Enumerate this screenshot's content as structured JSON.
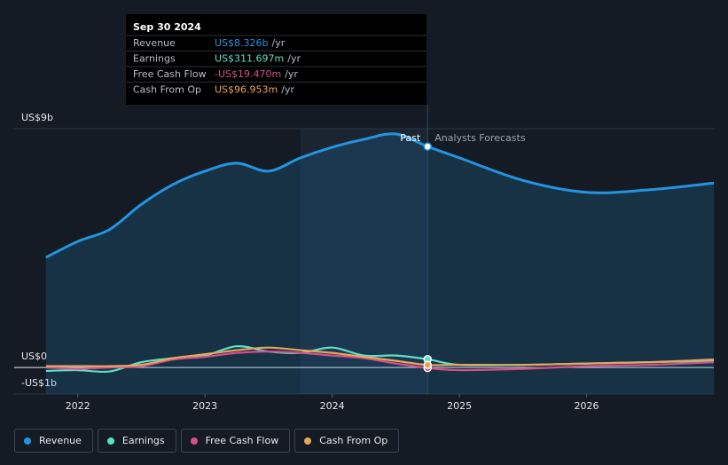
{
  "chart_data": {
    "type": "line",
    "x": [
      2021.75,
      2022.0,
      2022.25,
      2022.5,
      2022.75,
      2023.0,
      2023.25,
      2023.5,
      2023.75,
      2024.0,
      2024.25,
      2024.5,
      2024.75,
      2025.0,
      2025.5,
      2026.0,
      2026.5,
      2027.0
    ],
    "series": [
      {
        "name": "Revenue",
        "color": "#2394df",
        "values": [
          4.15,
          4.75,
          5.2,
          6.15,
          6.9,
          7.4,
          7.7,
          7.4,
          7.9,
          8.3,
          8.6,
          8.8,
          8.326,
          7.9,
          7.05,
          6.6,
          6.7,
          6.95
        ]
      },
      {
        "name": "Earnings",
        "color": "#5ee0c8",
        "values": [
          -0.13,
          -0.1,
          -0.15,
          0.2,
          0.35,
          0.45,
          0.8,
          0.6,
          0.55,
          0.75,
          0.45,
          0.45,
          0.311697,
          0.1,
          0.1,
          0.15,
          0.2,
          0.25
        ]
      },
      {
        "name": "Free Cash Flow",
        "color": "#d44f8a",
        "values": [
          0,
          -0.05,
          0,
          0.05,
          0.3,
          0.4,
          0.55,
          0.6,
          0.55,
          0.45,
          0.35,
          0.15,
          -0.01947,
          -0.1,
          -0.05,
          0.05,
          0.1,
          0.2
        ]
      },
      {
        "name": "Cash From Op",
        "color": "#e9a55a",
        "values": [
          0.05,
          0.05,
          0.05,
          0.1,
          0.35,
          0.5,
          0.65,
          0.75,
          0.65,
          0.55,
          0.4,
          0.25,
          0.096953,
          0.1,
          0.1,
          0.15,
          0.2,
          0.3
        ]
      }
    ],
    "xlim": [
      2021.5,
      2027.0
    ],
    "xticks": [
      2022,
      2023,
      2024,
      2025,
      2026
    ],
    "ylim": [
      -1,
      9
    ],
    "yticks": [
      {
        "value": 9,
        "label": "US$9b"
      },
      {
        "value": 0,
        "label": "US$0"
      },
      {
        "value": -1,
        "label": "-US$1b"
      }
    ],
    "grid": true,
    "divider": 2024.75,
    "highlight": [
      2023.75,
      2024.75
    ],
    "past_label": "Past",
    "forecast_label": "Analysts Forecasts",
    "tooltip": {
      "title": "Sep 30 2024",
      "index": 12,
      "unit": "/yr",
      "labels": [
        "US$8.326b",
        "US$311.697m",
        "-US$19.470m",
        "US$96.953m"
      ]
    }
  }
}
